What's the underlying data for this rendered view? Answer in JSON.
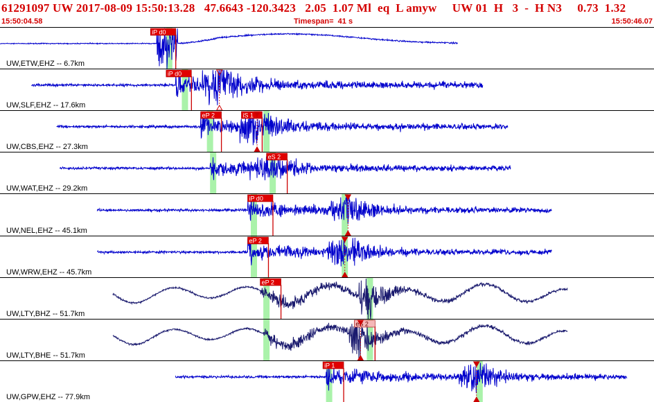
{
  "header": {
    "event_line": "61291097 UW 2017-08-09 15:50:13.28   47.6643 -120.3423   2.05  1.07 Ml  eq  L amyw     UW 01  H   3  -  H N3     0.73  1.32",
    "start_time": "15:50:04.58",
    "timespan": "Timespan=  41 s",
    "end_time": "15:50:46.07"
  },
  "colors": {
    "header_text": "#d40000",
    "trace_blue": "#0000cc",
    "trace_navy": "#1a1a6e",
    "pick_box": "#e00000",
    "pick_box_light": "#f5b8b8",
    "pick_line": "#cc0000",
    "window": "#aaf2aa"
  },
  "traces": [
    {
      "label": "UW,ETW,EHZ -- 6.7km",
      "color": "blue",
      "shape": "etw",
      "start": 0,
      "end": 73,
      "event": 25,
      "amp": 1.0,
      "windows": [
        26.5
      ],
      "picks": [
        {
          "label": "iP d0",
          "t": 24,
          "style": "box"
        }
      ]
    },
    {
      "label": "UW,SLF,EHZ -- 17.6km",
      "color": "blue",
      "shape": "normal",
      "start": 5,
      "end": 77,
      "event": 28,
      "amp": 0.6,
      "second": 35,
      "windows": [
        29
      ],
      "picks": [
        {
          "label": "iP d0",
          "t": 26.5,
          "style": "box"
        },
        {
          "label": "",
          "t": 35,
          "style": "hollow"
        }
      ]
    },
    {
      "label": "UW,CBS,EHZ -- 27.3km",
      "color": "blue",
      "shape": "normal",
      "start": 9,
      "end": 81,
      "event": 32,
      "amp": 0.55,
      "second": 41,
      "windows": [
        33,
        42
      ],
      "picks": [
        {
          "label": "eP 2",
          "t": 32,
          "style": "box"
        },
        {
          "label": "iS 1",
          "t": 38.5,
          "style": "box"
        },
        {
          "label": "",
          "t": 41,
          "style": "solid"
        }
      ]
    },
    {
      "label": "UW,WAT,EHZ -- 29.2km",
      "color": "blue",
      "shape": "normal",
      "start": 9.5,
      "end": 81.5,
      "event": 33.5,
      "amp": 0.5,
      "second": 42.5,
      "windows": [
        33.5,
        43
      ],
      "picks": [
        {
          "label": "eS 2",
          "t": 42.5,
          "style": "box"
        }
      ]
    },
    {
      "label": "UW,NEL,EHZ -- 45.1km",
      "color": "blue",
      "shape": "normal",
      "start": 15.5,
      "end": 88,
      "event": 39.5,
      "amp": 0.5,
      "second": 55.5,
      "windows": [
        40,
        54.5
      ],
      "picks": [
        {
          "label": "iP d0",
          "t": 39.5,
          "style": "box"
        },
        {
          "label": "",
          "t": 55.5,
          "style": "solid"
        }
      ]
    },
    {
      "label": "UW,WRW,EHZ -- 45.7km",
      "color": "blue",
      "shape": "normal",
      "start": 15.5,
      "end": 88,
      "event": 39.5,
      "amp": 0.5,
      "second": 55,
      "windows": [
        40,
        54.5
      ],
      "picks": [
        {
          "label": "eP 2",
          "t": 39.5,
          "style": "box"
        },
        {
          "label": "",
          "t": 55,
          "style": "solid"
        }
      ]
    },
    {
      "label": "UW,LTY,BHZ -- 51.7km",
      "color": "navy",
      "shape": "long",
      "start": 18,
      "end": 90.5,
      "event": 41.5,
      "amp": 0.5,
      "second": 58.5,
      "windows": [
        42,
        58.5
      ],
      "picks": [
        {
          "label": "eP 2",
          "t": 41.5,
          "style": "box"
        }
      ]
    },
    {
      "label": "UW,LTY,BHE -- 51.7km",
      "color": "navy",
      "shape": "long",
      "start": 18,
      "end": 90.5,
      "event": 42,
      "amp": 0.5,
      "second": 57,
      "windows": [
        42,
        58.5
      ],
      "picks": [
        {
          "label": "eS 2",
          "t": 56.5,
          "style": "lightbox"
        },
        {
          "label": "",
          "t": 57.5,
          "style": "solid"
        }
      ]
    },
    {
      "label": "UW,GPW,EHZ -- 77.9km",
      "color": "blue",
      "shape": "normal",
      "start": 28,
      "end": 100,
      "event": 52,
      "amp": 0.5,
      "second": 76,
      "windows": [
        52,
        76
      ],
      "picks": [
        {
          "label": "iP 1",
          "t": 51.5,
          "style": "box"
        },
        {
          "label": "",
          "t": 76,
          "style": "solid"
        }
      ]
    }
  ]
}
